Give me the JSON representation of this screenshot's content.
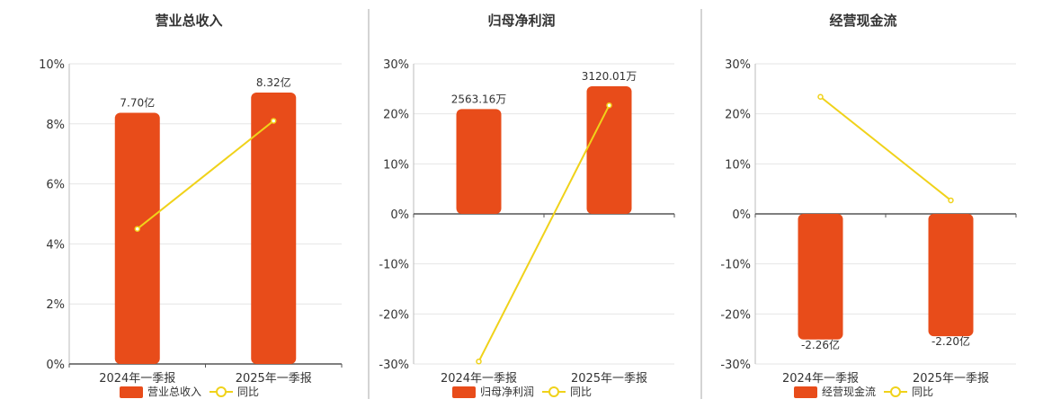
{
  "colors": {
    "bar": "#e84c1a",
    "line": "#f0d21a",
    "grid": "#e6e6e6",
    "axis": "#555555",
    "divider": "#aaaaaa"
  },
  "chart_data": [
    {
      "type": "bar",
      "title": "营业总收入",
      "categories": [
        "2024年一季报",
        "2025年一季报"
      ],
      "series": [
        {
          "name": "营业总收入",
          "type": "bar",
          "values": [
            7.7,
            8.32
          ],
          "labels": [
            "7.70亿",
            "8.32亿"
          ],
          "axis": "right"
        },
        {
          "name": "同比",
          "type": "line",
          "values": [
            4.5,
            8.1
          ],
          "axis": "left"
        }
      ],
      "y_ticks": [
        "0%",
        "2%",
        "4%",
        "6%",
        "8%",
        "10%"
      ],
      "ylim": [
        0,
        10
      ],
      "bar_ylim": [
        0,
        9.2
      ],
      "grid": true,
      "legend": "bottom"
    },
    {
      "type": "bar",
      "title": "归母净利润",
      "categories": [
        "2024年一季报",
        "2025年一季报"
      ],
      "series": [
        {
          "name": "归母净利润",
          "type": "bar",
          "values": [
            2563.16,
            3120.01
          ],
          "labels": [
            "2563.16万",
            "3120.01万"
          ],
          "axis": "right"
        },
        {
          "name": "同比",
          "type": "line",
          "values": [
            -29.5,
            21.7
          ],
          "axis": "left"
        }
      ],
      "y_ticks": [
        "-30%",
        "-20%",
        "-10%",
        "0%",
        "10%",
        "20%",
        "30%"
      ],
      "ylim": [
        -30,
        30
      ],
      "bar_ylim": [
        -3670,
        3670
      ],
      "grid": true,
      "legend": "bottom"
    },
    {
      "type": "bar",
      "title": "经营现金流",
      "categories": [
        "2024年一季报",
        "2025年一季报"
      ],
      "series": [
        {
          "name": "经营现金流",
          "type": "bar",
          "values": [
            -2.26,
            -2.2
          ],
          "labels": [
            "-2.26亿",
            "-2.20亿"
          ],
          "axis": "right"
        },
        {
          "name": "同比",
          "type": "line",
          "values": [
            23.4,
            2.7
          ],
          "axis": "left"
        }
      ],
      "y_ticks": [
        "-30%",
        "-20%",
        "-10%",
        "0%",
        "10%",
        "20%",
        "30%"
      ],
      "ylim": [
        -30,
        30
      ],
      "bar_ylim": [
        -2.7,
        2.7
      ],
      "grid": true,
      "legend": "bottom"
    }
  ]
}
